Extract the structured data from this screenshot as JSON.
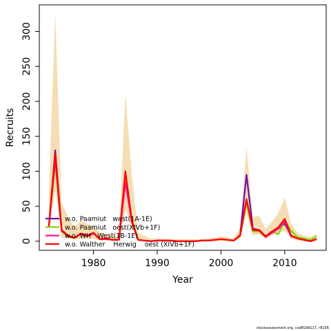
{
  "chart_data": {
    "type": "line",
    "title": "",
    "xlabel": "Year",
    "ylabel": "Recruits",
    "xlim": [
      1971.5,
      2016.5
    ],
    "ylim": [
      -13,
      338
    ],
    "xticks": [
      1980,
      1990,
      2000,
      2010
    ],
    "yticks": [
      0,
      50,
      100,
      150,
      200,
      250,
      300
    ],
    "grid": false,
    "legend_position": "bottom-left",
    "x": [
      1973,
      1974,
      1975,
      1976,
      1977,
      1978,
      1979,
      1980,
      1981,
      1982,
      1983,
      1984,
      1985,
      1986,
      1987,
      1988,
      1989,
      1990,
      1991,
      1992,
      1993,
      1994,
      1995,
      1996,
      1997,
      1998,
      1999,
      2000,
      2001,
      2002,
      2003,
      2004,
      2005,
      2006,
      2007,
      2008,
      2009,
      2010,
      2011,
      2012,
      2013,
      2014,
      2015
    ],
    "band": {
      "color": "#f5deb3",
      "lower": [
        10,
        75,
        5,
        4,
        3,
        3,
        3,
        3,
        1,
        1,
        1,
        1,
        45,
        20,
        1,
        1,
        0,
        0,
        0,
        0,
        0,
        0,
        0,
        0,
        0,
        0,
        0,
        0,
        0,
        0,
        3,
        40,
        8,
        10,
        3,
        8,
        12,
        15,
        3,
        1,
        0,
        0,
        1
      ],
      "upper": [
        70,
        328,
        55,
        35,
        20,
        30,
        25,
        22,
        12,
        10,
        8,
        7,
        212,
        95,
        12,
        8,
        4,
        4,
        3,
        3,
        3,
        3,
        3,
        3,
        3,
        4,
        5,
        7,
        6,
        4,
        20,
        135,
        35,
        36,
        18,
        28,
        40,
        63,
        25,
        12,
        8,
        6,
        10
      ]
    },
    "series": [
      {
        "name": "w.o. Paamiut   west(1A-1E)",
        "color": "#6a0dad",
        "values": [
          20,
          130,
          16,
          8,
          5,
          11,
          8,
          12,
          3,
          4,
          2,
          2,
          98,
          30,
          2,
          1,
          0,
          1,
          1,
          1,
          0,
          0,
          0,
          0,
          1,
          1,
          2,
          3,
          2,
          1,
          8,
          95,
          18,
          16,
          7,
          12,
          18,
          25,
          8,
          4,
          2,
          0,
          3
        ]
      },
      {
        "name": "w.o. Paamiut   oest(XIVb+1F)",
        "color": "#7fd400",
        "values": [
          22,
          110,
          14,
          7,
          4,
          10,
          7,
          11,
          3,
          3,
          2,
          2,
          90,
          27,
          2,
          1,
          0,
          1,
          1,
          1,
          0,
          0,
          0,
          0,
          1,
          1,
          2,
          3,
          2,
          1,
          7,
          55,
          14,
          14,
          6,
          14,
          10,
          30,
          15,
          6,
          4,
          2,
          7
        ]
      },
      {
        "name": "w.o. WH   West(1B-1E)",
        "color": "#ff1493",
        "values": [
          20,
          118,
          15,
          7,
          5,
          10,
          7,
          11,
          3,
          3,
          2,
          2,
          84,
          28,
          2,
          1,
          0,
          1,
          1,
          1,
          0,
          0,
          0,
          0,
          1,
          1,
          2,
          3,
          2,
          1,
          8,
          60,
          16,
          15,
          6,
          12,
          18,
          28,
          7,
          4,
          2,
          0,
          3
        ]
      },
      {
        "name": "w.o. Walther    Herwig    oest (XIVb+1F)",
        "color": "#ff0000",
        "values": [
          22,
          125,
          16,
          8,
          5,
          11,
          8,
          12,
          3,
          4,
          2,
          2,
          100,
          30,
          2,
          1,
          0,
          1,
          1,
          1,
          0,
          0,
          0,
          0,
          1,
          1,
          2,
          3,
          2,
          1,
          9,
          60,
          16,
          16,
          7,
          14,
          20,
          32,
          8,
          4,
          2,
          0,
          3
        ]
      }
    ]
  },
  "footnote": "stockassessment.org, codEGWG17, r8156"
}
